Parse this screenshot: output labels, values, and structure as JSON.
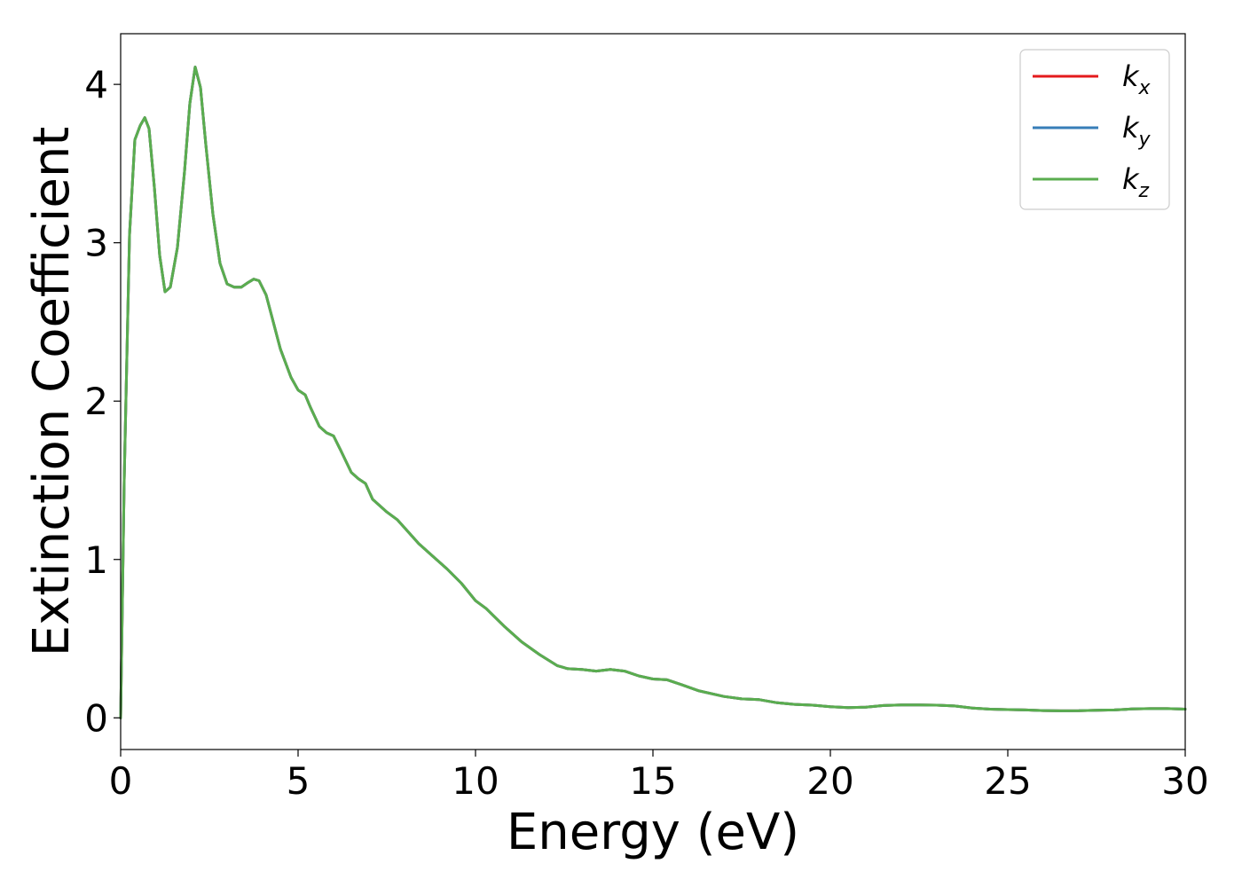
{
  "chart_data": {
    "type": "line",
    "xlabel": "Energy (eV)",
    "ylabel": "Extinction Coefficient",
    "xlim": [
      0,
      30
    ],
    "ylim": [
      -0.2,
      4.32
    ],
    "xticks": [
      0,
      5,
      10,
      15,
      20,
      25,
      30
    ],
    "xtick_labels": [
      "0",
      "5",
      "10",
      "15",
      "20",
      "25",
      "30"
    ],
    "yticks": [
      0,
      1,
      2,
      3,
      4
    ],
    "ytick_labels": [
      "0",
      "1",
      "2",
      "3",
      "4"
    ],
    "grid": false,
    "legend_position": "top-right",
    "x": [
      0,
      0.1,
      0.25,
      0.4,
      0.55,
      0.68,
      0.8,
      0.95,
      1.1,
      1.25,
      1.4,
      1.6,
      1.8,
      1.95,
      2.1,
      2.25,
      2.4,
      2.6,
      2.8,
      3.0,
      3.2,
      3.4,
      3.6,
      3.75,
      3.9,
      4.1,
      4.3,
      4.5,
      4.8,
      5.0,
      5.2,
      5.35,
      5.6,
      5.8,
      6.0,
      6.2,
      6.5,
      6.7,
      6.9,
      7.1,
      7.5,
      7.8,
      8.0,
      8.4,
      8.8,
      9.2,
      9.6,
      10.0,
      10.3,
      10.8,
      11.3,
      11.8,
      12.3,
      12.6,
      13.0,
      13.4,
      13.8,
      14.2,
      14.6,
      15.0,
      15.4,
      15.8,
      16.3,
      17.0,
      17.5,
      18.0,
      18.5,
      19.0,
      19.5,
      20.0,
      20.5,
      21.0,
      21.5,
      22.0,
      22.5,
      23.0,
      23.5,
      24.0,
      24.5,
      25.0,
      25.5,
      26.0,
      26.5,
      27.0,
      27.5,
      28.0,
      28.5,
      29.0,
      29.5,
      30.0
    ],
    "series": [
      {
        "name": "k_x",
        "label_base": "k",
        "label_sub": "x",
        "color": "#e41a1c",
        "values": [
          0.0,
          1.5,
          3.05,
          3.65,
          3.74,
          3.79,
          3.72,
          3.35,
          2.92,
          2.69,
          2.72,
          2.97,
          3.45,
          3.88,
          4.11,
          3.98,
          3.62,
          3.18,
          2.87,
          2.74,
          2.72,
          2.72,
          2.75,
          2.77,
          2.76,
          2.67,
          2.5,
          2.33,
          2.15,
          2.07,
          2.04,
          1.96,
          1.84,
          1.8,
          1.78,
          1.69,
          1.55,
          1.51,
          1.48,
          1.38,
          1.3,
          1.25,
          1.2,
          1.1,
          1.02,
          0.94,
          0.85,
          0.74,
          0.69,
          0.58,
          0.48,
          0.4,
          0.33,
          0.31,
          0.305,
          0.295,
          0.305,
          0.295,
          0.265,
          0.245,
          0.24,
          0.21,
          0.17,
          0.135,
          0.12,
          0.115,
          0.095,
          0.085,
          0.08,
          0.07,
          0.065,
          0.068,
          0.078,
          0.082,
          0.082,
          0.08,
          0.075,
          0.062,
          0.055,
          0.052,
          0.05,
          0.046,
          0.044,
          0.045,
          0.048,
          0.05,
          0.056,
          0.058,
          0.058,
          0.055
        ]
      },
      {
        "name": "k_y",
        "label_base": "k",
        "label_sub": "y",
        "color": "#377eb8",
        "values": [
          0.0,
          1.5,
          3.05,
          3.65,
          3.74,
          3.79,
          3.72,
          3.35,
          2.92,
          2.69,
          2.72,
          2.97,
          3.45,
          3.88,
          4.11,
          3.98,
          3.62,
          3.18,
          2.87,
          2.74,
          2.72,
          2.72,
          2.75,
          2.77,
          2.76,
          2.67,
          2.5,
          2.33,
          2.15,
          2.07,
          2.04,
          1.96,
          1.84,
          1.8,
          1.78,
          1.69,
          1.55,
          1.51,
          1.48,
          1.38,
          1.3,
          1.25,
          1.2,
          1.1,
          1.02,
          0.94,
          0.85,
          0.74,
          0.69,
          0.58,
          0.48,
          0.4,
          0.33,
          0.31,
          0.305,
          0.295,
          0.305,
          0.295,
          0.265,
          0.245,
          0.24,
          0.21,
          0.17,
          0.135,
          0.12,
          0.115,
          0.095,
          0.085,
          0.08,
          0.07,
          0.065,
          0.068,
          0.078,
          0.082,
          0.082,
          0.08,
          0.075,
          0.062,
          0.055,
          0.052,
          0.05,
          0.046,
          0.044,
          0.045,
          0.048,
          0.05,
          0.056,
          0.058,
          0.058,
          0.055
        ]
      },
      {
        "name": "k_z",
        "label_base": "k",
        "label_sub": "z",
        "color": "#5aad4f",
        "values": [
          0.0,
          1.5,
          3.05,
          3.65,
          3.74,
          3.79,
          3.72,
          3.35,
          2.92,
          2.69,
          2.72,
          2.97,
          3.45,
          3.88,
          4.11,
          3.98,
          3.62,
          3.18,
          2.87,
          2.74,
          2.72,
          2.72,
          2.75,
          2.77,
          2.76,
          2.67,
          2.5,
          2.33,
          2.15,
          2.07,
          2.04,
          1.96,
          1.84,
          1.8,
          1.78,
          1.69,
          1.55,
          1.51,
          1.48,
          1.38,
          1.3,
          1.25,
          1.2,
          1.1,
          1.02,
          0.94,
          0.85,
          0.74,
          0.69,
          0.58,
          0.48,
          0.4,
          0.33,
          0.31,
          0.305,
          0.295,
          0.305,
          0.295,
          0.265,
          0.245,
          0.24,
          0.21,
          0.17,
          0.135,
          0.12,
          0.115,
          0.095,
          0.085,
          0.08,
          0.07,
          0.065,
          0.068,
          0.078,
          0.082,
          0.082,
          0.08,
          0.075,
          0.062,
          0.055,
          0.052,
          0.05,
          0.046,
          0.044,
          0.045,
          0.048,
          0.05,
          0.056,
          0.058,
          0.058,
          0.055
        ]
      }
    ]
  }
}
